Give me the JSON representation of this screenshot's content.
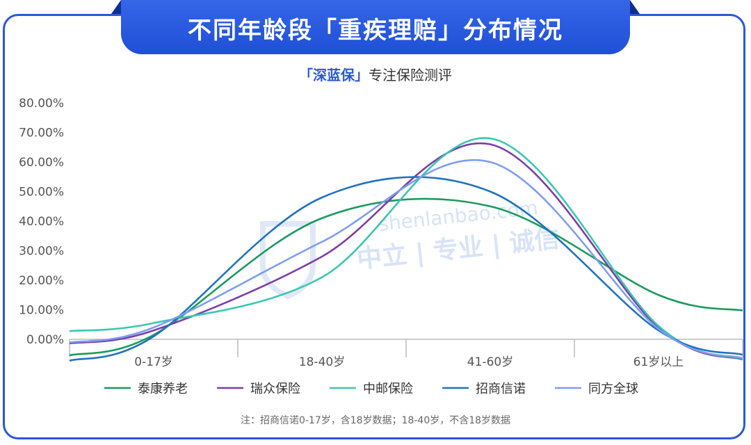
{
  "header": {
    "title": "不同年龄段「重疾理赔」分布情况",
    "subtitle_brand": "「深蓝保」",
    "subtitle_rest": "专注保险测评"
  },
  "watermark": {
    "line1": "shenlanbao.com",
    "line2": "中立 | 专业 | 诚信"
  },
  "footnote": "注：招商信诺0-17岁，含18岁数据；18-40岁，不含18岁数据",
  "chart_data": {
    "type": "line",
    "smooth": true,
    "categories": [
      "0-17岁",
      "18-40岁",
      "41-60岁",
      "61岁以上"
    ],
    "y_ticks": [
      "0.00%",
      "10.00%",
      "20.00%",
      "30.00%",
      "40.00%",
      "50.00%",
      "60.00%",
      "70.00%",
      "80.00%"
    ],
    "ylim": [
      0,
      80
    ],
    "legend_position": "bottom",
    "series": [
      {
        "name": "泰康养老",
        "color": "#1a9a5c",
        "values": [
          1.5,
          41,
          45,
          15
        ]
      },
      {
        "name": "瑞众保险",
        "color": "#7a3fa8",
        "values": [
          3,
          28,
          66,
          4
        ]
      },
      {
        "name": "中邮保险",
        "color": "#3cc6b0",
        "values": [
          5.5,
          21,
          68,
          4.5
        ]
      },
      {
        "name": "招商信诺",
        "color": "#1f73bf",
        "values": [
          1,
          48,
          50,
          3
        ]
      },
      {
        "name": "同方全球",
        "color": "#7c9ef0",
        "values": [
          4,
          33,
          60,
          3.5
        ]
      }
    ]
  }
}
